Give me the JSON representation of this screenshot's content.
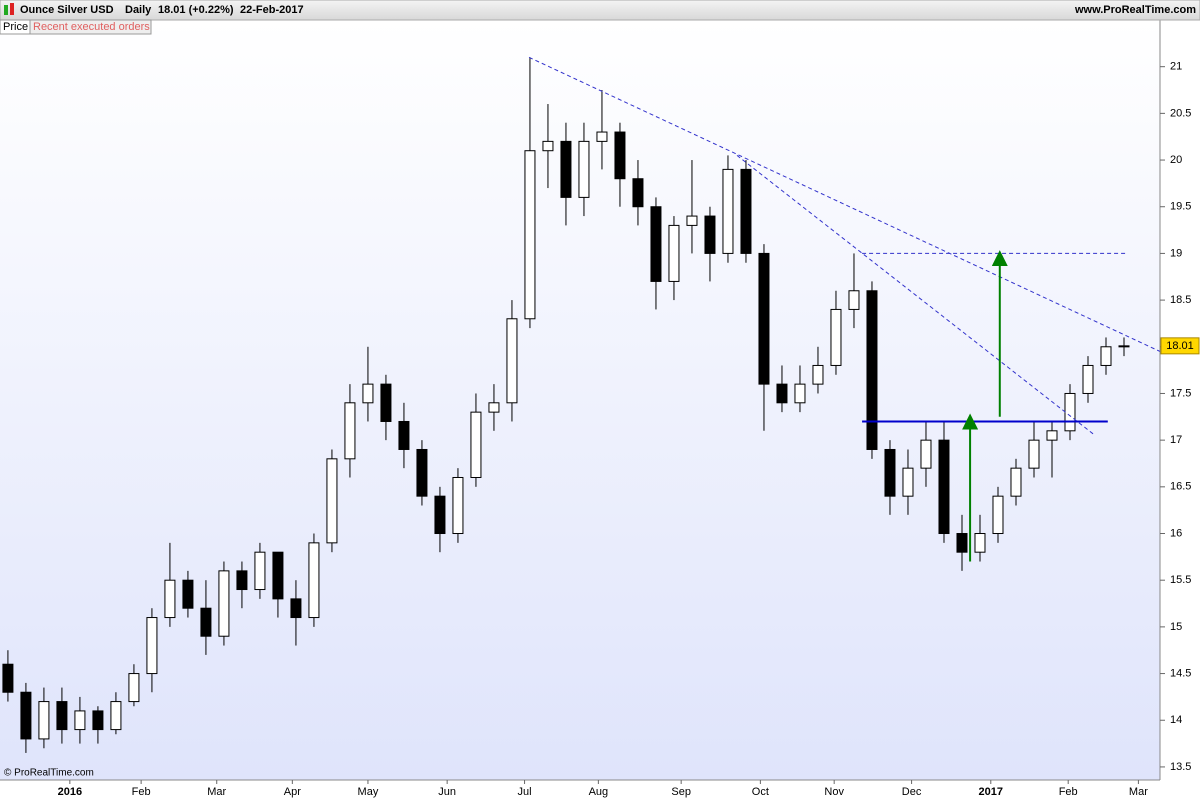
{
  "header": {
    "instrument": "Ounce Silver USD",
    "period": "Daily",
    "quote": "18.01 (+0.22%)",
    "date": "22-Feb-2017",
    "site": "www.ProRealTime.com"
  },
  "tabs": {
    "price": "Price",
    "orders": "Recent executed orders"
  },
  "copyright": "© ProRealTime.com",
  "chart_data": {
    "type": "candlestick",
    "categories": [
      null,
      null,
      null,
      null,
      null,
      null,
      null,
      null,
      null,
      null,
      null,
      null,
      null,
      null,
      null,
      null,
      null,
      null,
      null,
      null,
      null,
      null,
      null,
      null,
      null,
      null,
      null,
      null,
      null,
      null,
      null,
      null,
      null,
      null,
      null,
      null,
      null,
      null,
      null,
      null,
      null,
      null,
      null,
      null,
      null,
      null,
      null,
      null,
      null,
      null,
      null,
      null,
      null,
      null,
      null,
      null,
      null,
      null,
      null,
      null,
      null,
      null,
      null
    ],
    "open": [
      14.6,
      14.3,
      13.8,
      14.2,
      13.9,
      14.1,
      13.9,
      14.2,
      14.5,
      15.1,
      15.5,
      15.2,
      14.9,
      15.6,
      15.4,
      15.8,
      15.3,
      15.1,
      15.9,
      16.8,
      17.4,
      17.6,
      17.2,
      16.9,
      16.4,
      16.0,
      16.6,
      17.3,
      17.4,
      18.3,
      20.1,
      20.2,
      19.6,
      20.2,
      20.3,
      19.8,
      19.5,
      18.7,
      19.3,
      19.4,
      19.0,
      19.9,
      19.0,
      17.6,
      17.4,
      17.6,
      17.8,
      18.4,
      18.6,
      16.9,
      16.4,
      16.7,
      17.0,
      16.0,
      15.8,
      16.0,
      16.4,
      16.7,
      17.0,
      17.1,
      17.5,
      17.8,
      18.0
    ],
    "high": [
      14.75,
      14.4,
      14.35,
      14.35,
      14.25,
      14.15,
      14.3,
      14.6,
      15.2,
      15.9,
      15.6,
      15.5,
      15.7,
      15.7,
      15.9,
      15.8,
      15.5,
      16.0,
      16.9,
      17.6,
      18.0,
      17.7,
      17.4,
      17.0,
      16.5,
      16.7,
      17.5,
      17.6,
      18.5,
      21.1,
      20.6,
      20.4,
      20.4,
      20.75,
      20.4,
      20.0,
      19.6,
      19.4,
      20.0,
      19.5,
      20.05,
      20.0,
      19.1,
      17.8,
      17.8,
      18.0,
      18.6,
      19.0,
      18.7,
      17.0,
      16.9,
      17.2,
      17.2,
      16.2,
      16.2,
      16.5,
      16.8,
      17.2,
      17.2,
      17.6,
      17.9,
      18.1,
      18.1
    ],
    "low": [
      14.2,
      13.65,
      13.7,
      13.75,
      13.75,
      13.75,
      13.85,
      14.15,
      14.3,
      15.0,
      15.1,
      14.7,
      14.8,
      15.2,
      15.3,
      15.1,
      14.8,
      15.0,
      15.8,
      16.6,
      17.2,
      17.0,
      16.7,
      16.3,
      15.8,
      15.9,
      16.5,
      17.1,
      17.2,
      18.2,
      19.7,
      19.3,
      19.4,
      19.9,
      19.5,
      19.3,
      18.4,
      18.5,
      19.0,
      18.7,
      18.9,
      18.9,
      17.1,
      17.3,
      17.3,
      17.5,
      17.7,
      18.2,
      16.8,
      16.2,
      16.2,
      16.5,
      15.9,
      15.6,
      15.7,
      15.9,
      16.3,
      16.6,
      16.6,
      17.0,
      17.4,
      17.7,
      17.9
    ],
    "close": [
      14.3,
      13.8,
      14.2,
      13.9,
      14.1,
      13.9,
      14.2,
      14.5,
      15.1,
      15.5,
      15.2,
      14.9,
      15.6,
      15.4,
      15.8,
      15.3,
      15.1,
      15.9,
      16.8,
      17.4,
      17.6,
      17.2,
      16.9,
      16.4,
      16.0,
      16.6,
      17.3,
      17.4,
      18.3,
      20.1,
      20.2,
      19.6,
      20.2,
      20.3,
      19.8,
      19.5,
      18.7,
      19.3,
      19.4,
      19.0,
      19.9,
      19.0,
      17.6,
      17.4,
      17.6,
      17.8,
      18.4,
      18.6,
      16.9,
      16.4,
      16.7,
      17.0,
      16.0,
      15.8,
      16.0,
      16.4,
      16.7,
      17.0,
      17.1,
      17.5,
      17.8,
      18.0,
      18.01
    ],
    "last_price": 18.01,
    "xlim": [
      -0.44,
      64
    ],
    "xticks": [
      {
        "value": 3.44,
        "label": "2016"
      },
      {
        "value": 7.4,
        "label": "Feb"
      },
      {
        "value": 11.6,
        "label": "Mar"
      },
      {
        "value": 15.8,
        "label": "Apr"
      },
      {
        "value": 20,
        "label": "May"
      },
      {
        "value": 24.4,
        "label": "Jun"
      },
      {
        "value": 28.7,
        "label": "Jul"
      },
      {
        "value": 32.8,
        "label": "Aug"
      },
      {
        "value": 37.4,
        "label": "Sep"
      },
      {
        "value": 41.8,
        "label": "Oct"
      },
      {
        "value": 45.9,
        "label": "Nov"
      },
      {
        "value": 50.2,
        "label": "Dec"
      },
      {
        "value": 54.6,
        "label": "2017"
      },
      {
        "value": 58.9,
        "label": "Feb"
      },
      {
        "value": 62.8,
        "label": "Mar"
      }
    ],
    "ylim": [
      13.36,
      21.5
    ],
    "yticks": [
      13.5,
      14,
      14.5,
      15,
      15.5,
      16,
      16.5,
      17,
      17.5,
      18,
      18.5,
      19,
      19.5,
      20,
      20.5,
      21
    ],
    "drawings": [
      {
        "kind": "dashed",
        "color": "#3333cc",
        "x": [
          28.95,
          64
        ],
        "y": [
          21.1,
          17.95
        ]
      },
      {
        "kind": "dashed",
        "color": "#3333cc",
        "x": [
          40.5,
          60.4
        ],
        "y": [
          20.05,
          17.05
        ]
      },
      {
        "kind": "dashed",
        "color": "#3333cc",
        "x": [
          47.45,
          62.1
        ],
        "y": [
          19.0,
          19.0
        ]
      },
      {
        "kind": "solid",
        "color": "#0000cc",
        "x": [
          47.45,
          61.1
        ],
        "y": [
          17.2,
          17.2
        ]
      },
      {
        "kind": "arrow",
        "color": "#008000",
        "x": [
          55.1,
          55.1
        ],
        "y": [
          17.25,
          18.95
        ]
      },
      {
        "kind": "arrow",
        "color": "#008000",
        "x": [
          53.45,
          53.45
        ],
        "y": [
          15.7,
          17.2
        ]
      }
    ]
  }
}
